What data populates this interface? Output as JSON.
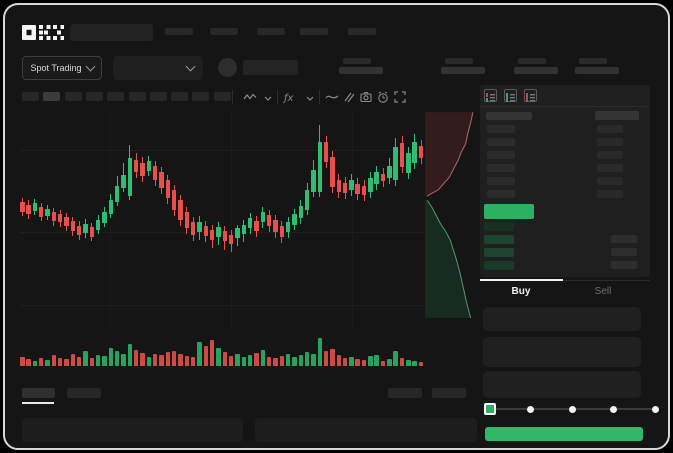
{
  "app": {
    "brand": "OKX"
  },
  "colors": {
    "accent_green": "#2bb161",
    "buy_button_green": "#2eb868",
    "candle_up": "#2ebd72",
    "candle_down": "#e85050",
    "volume_up": "#27a35f",
    "volume_down": "#cc4b47",
    "depth_ask_line": "#b06a62",
    "depth_bid_line": "#4f9a72",
    "tab_active_text": "#f2f2f2",
    "tab_inactive_text": "#6e6e6e"
  },
  "header": {
    "market_selector_label": "Spot Trading",
    "nav_skeleton_count": 5,
    "stat_block_count": 4
  },
  "chart": {
    "timeframe_skeleton_count": 10,
    "toolbar_icons": [
      "candle-style-icon",
      "chevron-down-icon",
      "indicator-fx-icon",
      "chevron-down-icon",
      "line-wave-icon",
      "compare-icon",
      "camera-icon",
      "alarm-icon",
      "fullscreen-icon"
    ]
  },
  "orderbook": {
    "view_icons": [
      "book-combined-icon",
      "book-bids-icon",
      "book-asks-icon"
    ],
    "ask_rows": 6,
    "bid_rows": 4,
    "right_bid_rows": 3,
    "bid_bar_colors": [
      "#17301f",
      "#1d4530",
      "#1d4530",
      "#183a27"
    ]
  },
  "trade_panel": {
    "tabs": [
      {
        "label": "Buy",
        "active": true
      },
      {
        "label": "Sell",
        "active": false
      }
    ],
    "input_skeleton_count": 3,
    "slider": {
      "stops": 5,
      "active_stop": 0
    }
  },
  "bottom_bar": {
    "left_tab_count": 2,
    "active_left_tab": 0,
    "right_tab_count": 2,
    "panel_count": 2
  },
  "chart_data": {
    "type": "candlestick",
    "title": "",
    "xlabel": "",
    "ylabel": "",
    "axes_visible": false,
    "grid": "faint",
    "colors": {
      "up": "#2ebd72",
      "down": "#e85050",
      "vol_up": "#27a35f",
      "vol_down": "#cc4b47"
    },
    "candles": [
      [
        198,
        202,
        212,
        216,
        "r"
      ],
      [
        200,
        205,
        214,
        219,
        "r"
      ],
      [
        199,
        203,
        211,
        215,
        "g"
      ],
      [
        203,
        207,
        217,
        221,
        "r"
      ],
      [
        205,
        209,
        216,
        220,
        "g"
      ],
      [
        208,
        212,
        221,
        226,
        "r"
      ],
      [
        210,
        214,
        222,
        227,
        "r"
      ],
      [
        213,
        217,
        226,
        231,
        "r"
      ],
      [
        217,
        221,
        231,
        236,
        "r"
      ],
      [
        221,
        226,
        235,
        240,
        "r"
      ],
      [
        219,
        224,
        233,
        238,
        "g"
      ],
      [
        223,
        227,
        237,
        241,
        "r"
      ],
      [
        215,
        220,
        230,
        234,
        "g"
      ],
      [
        207,
        212,
        223,
        227,
        "g"
      ],
      [
        194,
        200,
        214,
        218,
        "g"
      ],
      [
        176,
        186,
        202,
        206,
        "g"
      ],
      [
        163,
        175,
        188,
        192,
        "g"
      ],
      [
        145,
        158,
        196,
        200,
        "g"
      ],
      [
        153,
        160,
        172,
        178,
        "r"
      ],
      [
        157,
        163,
        176,
        182,
        "r"
      ],
      [
        156,
        161,
        171,
        176,
        "g"
      ],
      [
        161,
        166,
        180,
        186,
        "r"
      ],
      [
        167,
        172,
        188,
        194,
        "r"
      ],
      [
        175,
        180,
        198,
        204,
        "r"
      ],
      [
        185,
        190,
        210,
        216,
        "r"
      ],
      [
        195,
        200,
        220,
        226,
        "r"
      ],
      [
        207,
        212,
        228,
        234,
        "r"
      ],
      [
        217,
        222,
        235,
        241,
        "r"
      ],
      [
        216,
        222,
        232,
        240,
        "g"
      ],
      [
        221,
        226,
        236,
        242,
        "r"
      ],
      [
        225,
        230,
        240,
        248,
        "r"
      ],
      [
        222,
        227,
        237,
        245,
        "g"
      ],
      [
        226,
        231,
        241,
        250,
        "r"
      ],
      [
        230,
        235,
        244,
        252,
        "r"
      ],
      [
        225,
        228,
        238,
        246,
        "g"
      ],
      [
        220,
        225,
        234,
        242,
        "g"
      ],
      [
        213,
        218,
        228,
        234,
        "g"
      ],
      [
        216,
        221,
        231,
        237,
        "r"
      ],
      [
        207,
        212,
        222,
        228,
        "g"
      ],
      [
        210,
        215,
        226,
        232,
        "r"
      ],
      [
        215,
        220,
        232,
        238,
        "r"
      ],
      [
        221,
        226,
        237,
        243,
        "r"
      ],
      [
        217,
        222,
        232,
        238,
        "g"
      ],
      [
        209,
        214,
        225,
        230,
        "g"
      ],
      [
        200,
        206,
        218,
        224,
        "g"
      ],
      [
        183,
        190,
        210,
        215,
        "g"
      ],
      [
        160,
        170,
        192,
        197,
        "g"
      ],
      [
        125,
        142,
        192,
        197,
        "g"
      ],
      [
        136,
        142,
        162,
        168,
        "r"
      ],
      [
        151,
        157,
        187,
        193,
        "r"
      ],
      [
        174,
        180,
        192,
        198,
        "r"
      ],
      [
        177,
        183,
        193,
        199,
        "r"
      ],
      [
        174,
        180,
        190,
        196,
        "g"
      ],
      [
        178,
        184,
        194,
        200,
        "r"
      ],
      [
        180,
        186,
        195,
        201,
        "r"
      ],
      [
        172,
        178,
        192,
        198,
        "g"
      ],
      [
        166,
        172,
        184,
        190,
        "g"
      ],
      [
        168,
        174,
        181,
        187,
        "r"
      ],
      [
        158,
        166,
        178,
        184,
        "g"
      ],
      [
        138,
        147,
        180,
        186,
        "g"
      ],
      [
        136,
        143,
        167,
        173,
        "r"
      ],
      [
        147,
        153,
        173,
        179,
        "g"
      ],
      [
        134,
        142,
        163,
        169,
        "g"
      ],
      [
        140,
        146,
        158,
        164,
        "r"
      ]
    ],
    "volume": [
      9,
      7,
      5,
      8,
      6,
      11,
      8,
      7,
      12,
      9,
      15,
      8,
      11,
      10,
      18,
      15,
      12,
      22,
      16,
      13,
      9,
      12,
      11,
      14,
      15,
      12,
      10,
      9,
      24,
      20,
      26,
      18,
      14,
      10,
      12,
      9,
      11,
      13,
      16,
      9,
      8,
      10,
      12,
      9,
      11,
      14,
      12,
      28,
      15,
      17,
      11,
      8,
      9,
      7,
      6,
      10,
      11,
      5,
      7,
      15,
      8,
      6,
      5,
      4
    ],
    "depth": {
      "ask_points": [
        [
          0.87,
          0.02
        ],
        [
          0.83,
          0.07
        ],
        [
          0.78,
          0.12
        ],
        [
          0.74,
          0.17
        ],
        [
          0.66,
          0.21
        ],
        [
          0.6,
          0.25
        ],
        [
          0.52,
          0.29
        ],
        [
          0.44,
          0.33
        ],
        [
          0.34,
          0.36
        ],
        [
          0.24,
          0.39
        ],
        [
          0.1,
          0.41
        ],
        [
          0.04,
          0.42
        ]
      ],
      "bid_points": [
        [
          0.04,
          0.44
        ],
        [
          0.12,
          0.47
        ],
        [
          0.2,
          0.51
        ],
        [
          0.28,
          0.55
        ],
        [
          0.38,
          0.59
        ],
        [
          0.46,
          0.63
        ],
        [
          0.52,
          0.68
        ],
        [
          0.58,
          0.73
        ],
        [
          0.64,
          0.79
        ],
        [
          0.7,
          0.86
        ],
        [
          0.75,
          0.92
        ],
        [
          0.8,
          0.97
        ],
        [
          0.83,
          1.0
        ]
      ]
    }
  }
}
